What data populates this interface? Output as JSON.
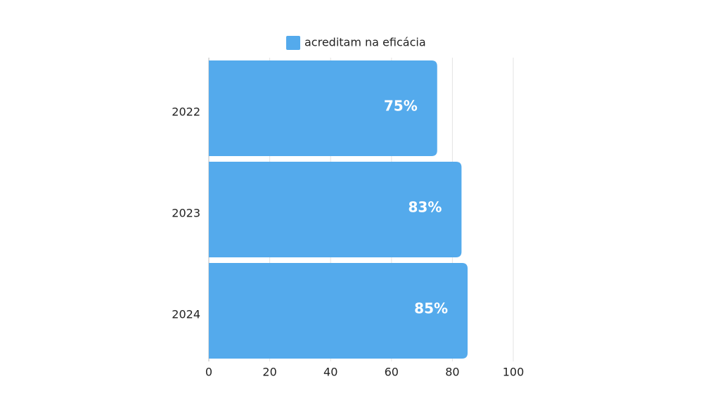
{
  "chart_data": {
    "type": "bar",
    "orientation": "horizontal",
    "categories": [
      "2022",
      "2023",
      "2024"
    ],
    "series": [
      {
        "name": "acreditam na eficácia",
        "color": "#54aaec",
        "values": [
          75,
          83,
          85
        ],
        "value_labels": [
          "75%",
          "83%",
          "85%"
        ]
      }
    ],
    "xlim": [
      0,
      100
    ],
    "xticks": [
      0,
      20,
      40,
      60,
      80,
      100
    ],
    "grid": true,
    "legend": "top"
  }
}
